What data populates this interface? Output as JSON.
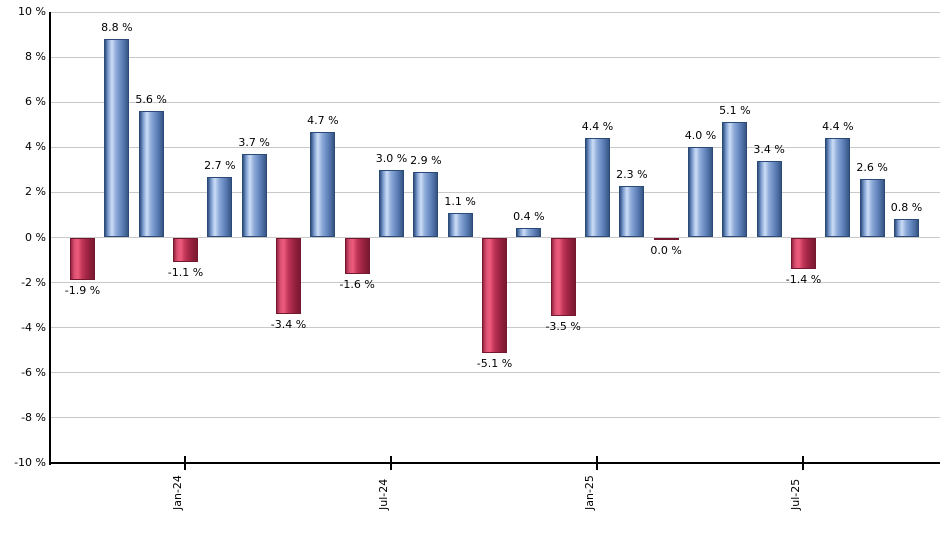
{
  "chart_data": {
    "type": "bar",
    "title": "",
    "xlabel": "",
    "ylabel": "",
    "ylim": [
      -10,
      10
    ],
    "grid": true,
    "legend_position": "none",
    "y_ticks": [
      {
        "value": 10,
        "label": "10 %"
      },
      {
        "value": 8,
        "label": "8 %"
      },
      {
        "value": 6,
        "label": "6 %"
      },
      {
        "value": 4,
        "label": "4 %"
      },
      {
        "value": 2,
        "label": "2 %"
      },
      {
        "value": 0,
        "label": "0 %"
      },
      {
        "value": -2,
        "label": "-2 %"
      },
      {
        "value": -4,
        "label": "-4 %"
      },
      {
        "value": -6,
        "label": "-6 %"
      },
      {
        "value": -8,
        "label": "-8 %"
      },
      {
        "value": -10,
        "label": "-10 %"
      }
    ],
    "x_ticks": [
      {
        "label": "Jan-24",
        "bar_index": 3
      },
      {
        "label": "Jul-24",
        "bar_index": 9
      },
      {
        "label": "Jan-25",
        "bar_index": 15
      },
      {
        "label": "Jul-25",
        "bar_index": 21
      }
    ],
    "bars": [
      {
        "value": -1.9,
        "label": "-1.9 %"
      },
      {
        "value": 8.8,
        "label": "8.8 %"
      },
      {
        "value": 5.6,
        "label": "5.6 %"
      },
      {
        "value": -1.1,
        "label": "-1.1 %"
      },
      {
        "value": 2.7,
        "label": "2.7 %"
      },
      {
        "value": 3.7,
        "label": "3.7 %"
      },
      {
        "value": -3.4,
        "label": "-3.4 %"
      },
      {
        "value": 4.7,
        "label": "4.7 %"
      },
      {
        "value": -1.6,
        "label": "-1.6 %"
      },
      {
        "value": 3.0,
        "label": "3.0 %"
      },
      {
        "value": 2.9,
        "label": "2.9 %"
      },
      {
        "value": 1.1,
        "label": "1.1 %"
      },
      {
        "value": -5.1,
        "label": "-5.1 %"
      },
      {
        "value": 0.4,
        "label": "0.4 %"
      },
      {
        "value": -3.5,
        "label": "-3.5 %"
      },
      {
        "value": 4.4,
        "label": "4.4 %"
      },
      {
        "value": 2.3,
        "label": "2.3 %"
      },
      {
        "value": 0.0,
        "label": "0.0 %",
        "sign": "negative"
      },
      {
        "value": 4.0,
        "label": "4.0 %"
      },
      {
        "value": 5.1,
        "label": "5.1 %"
      },
      {
        "value": 3.4,
        "label": "3.4 %"
      },
      {
        "value": -1.4,
        "label": "-1.4 %"
      },
      {
        "value": 4.4,
        "label": "4.4 %"
      },
      {
        "value": 2.6,
        "label": "2.6 %"
      },
      {
        "value": 0.8,
        "label": "0.8 %"
      }
    ],
    "colors": {
      "positive_gradient": [
        "#30507e",
        "#7e9ed2",
        "#cddef6",
        "#8eaad8",
        "#6d8ec4",
        "#4e70a6",
        "#365581"
      ],
      "negative_gradient": [
        "#9a2342",
        "#d94f71",
        "#ee5c7c",
        "#c13658",
        "#a52747",
        "#8a1d38",
        "#7d1931"
      ],
      "positive_border": "#2a4a77",
      "negative_border": "#73182e",
      "gridline": "#c8c8c8",
      "axis": "#000000",
      "label_text": "#000000"
    }
  }
}
